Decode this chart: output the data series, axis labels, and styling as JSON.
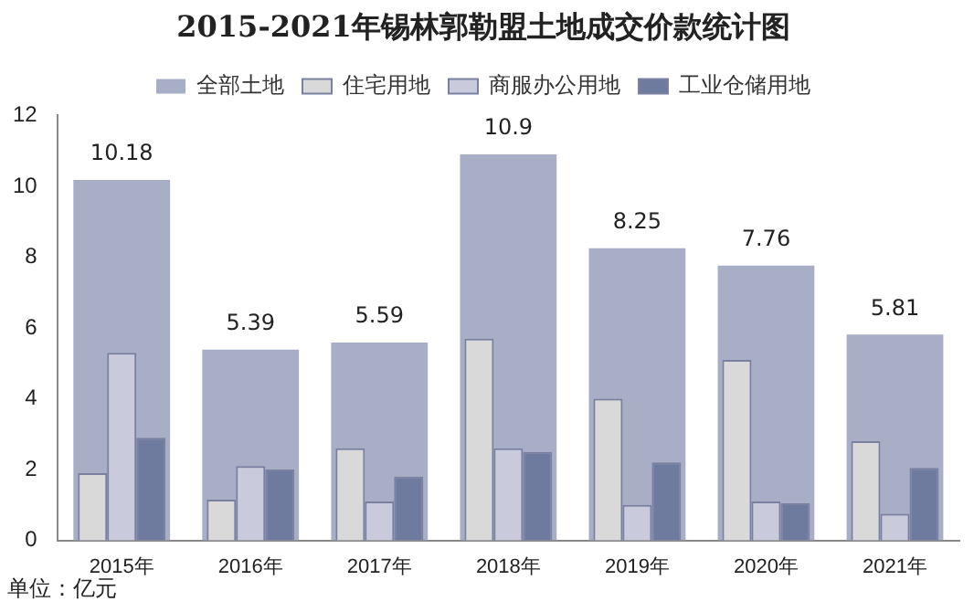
{
  "chart_data": {
    "type": "bar",
    "title": "2015-2021年锡林郭勒盟土地成交价款统计图",
    "categories": [
      "2015年",
      "2016年",
      "2017年",
      "2018年",
      "2019年",
      "2020年",
      "2021年"
    ],
    "series": [
      {
        "name": "全部土地",
        "color": "#a8aec6",
        "values": [
          10.18,
          5.39,
          5.59,
          10.9,
          8.25,
          7.76,
          5.81
        ],
        "value_labels": [
          "10.18",
          "5.39",
          "5.59",
          "10.9",
          "8.25",
          "7.76",
          "5.81"
        ]
      },
      {
        "name": "住宅用地",
        "color": "#d9d9d9",
        "values": [
          1.9,
          1.15,
          2.6,
          5.7,
          4.0,
          5.1,
          2.8
        ]
      },
      {
        "name": "商服办公用地",
        "color": "#c9cbdc",
        "values": [
          5.3,
          2.1,
          1.1,
          2.6,
          1.0,
          1.1,
          0.75
        ]
      },
      {
        "name": "工业仓储用地",
        "color": "#6f7a9f",
        "values": [
          2.9,
          2.0,
          1.8,
          2.5,
          2.2,
          1.05,
          2.05
        ]
      }
    ],
    "ylim": [
      0,
      12
    ],
    "yticks": [
      0,
      2,
      4,
      6,
      8,
      10,
      12
    ],
    "grid": false,
    "legend": "top",
    "annotations": [
      "单位：亿元"
    ]
  }
}
